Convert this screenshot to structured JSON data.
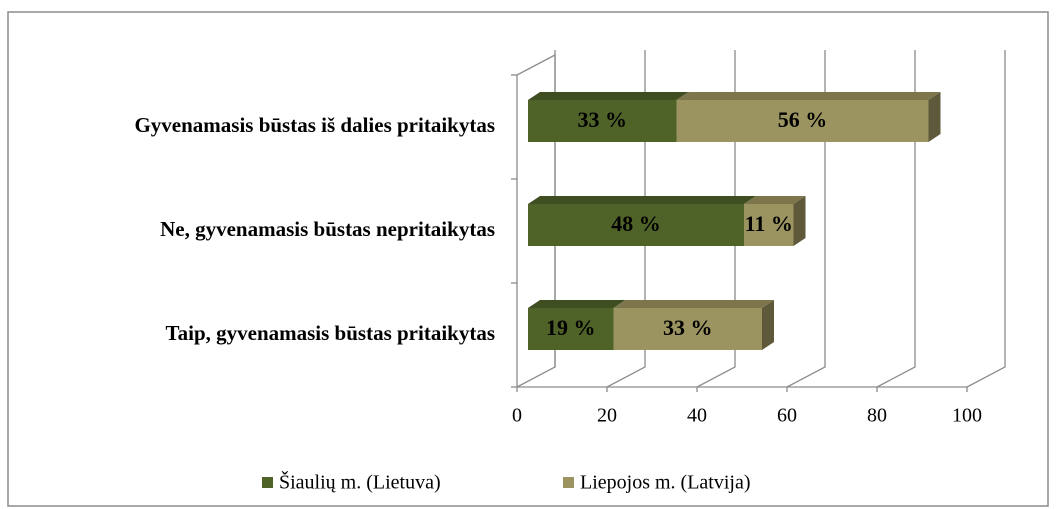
{
  "chart_data": {
    "type": "bar",
    "categories": [
      "Gyvenamasis būstas iš dalies pritaikytas",
      "Ne, gyvenamasis būstas nepritaikytas",
      "Taip, gyvenamasis būstas pritaikytas"
    ],
    "series": [
      {
        "name": "Šiaulių m. (Lietuva)",
        "color": "#4f6228",
        "values": [
          33,
          48,
          19
        ],
        "value_labels": [
          "33 %",
          "48 %",
          "19 %"
        ]
      },
      {
        "name": "Liepojos m. (Latvija)",
        "color": "#9c9460",
        "values": [
          56,
          11,
          33
        ],
        "value_labels": [
          "56 %",
          "11 %",
          "33 %"
        ]
      }
    ],
    "xlim": [
      0,
      100
    ],
    "xticks": [
      0,
      20,
      40,
      60,
      80,
      100
    ],
    "grid": true,
    "legend": "bottom"
  }
}
